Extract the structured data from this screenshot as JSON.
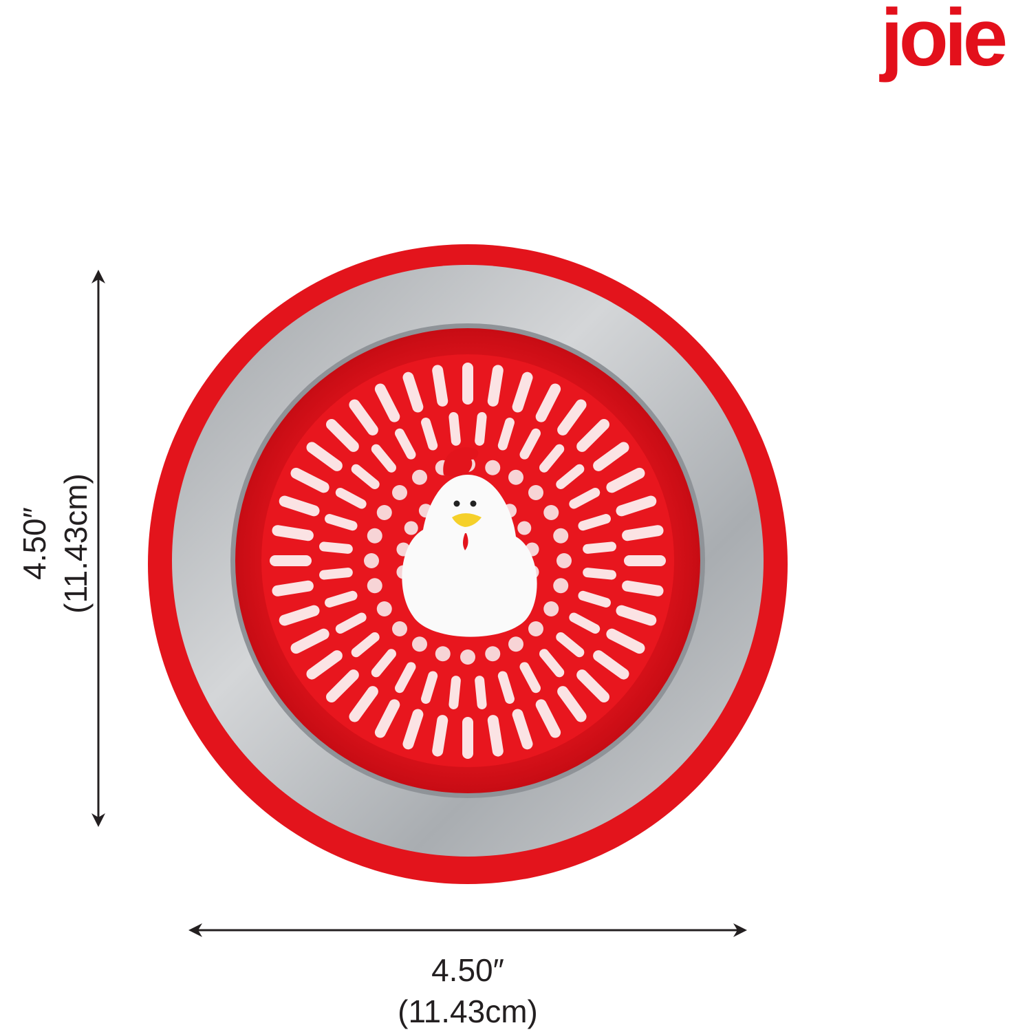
{
  "brand": {
    "logo_text": "joie",
    "color": "#e3101b"
  },
  "product": {
    "colors": {
      "red": "#e3101b",
      "steel": "#b9bcbf",
      "chicken": "#ffffff"
    },
    "icon": "chicken-sink-strainer"
  },
  "dimensions": {
    "height": {
      "inches": "4.50″",
      "cm": "(11.43cm)"
    },
    "width": {
      "inches": "4.50″",
      "cm": "(11.43cm)"
    }
  }
}
